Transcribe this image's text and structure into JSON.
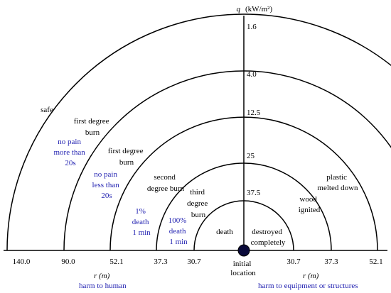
{
  "colors": {
    "line": "#000000",
    "text": "#000000",
    "accent": "#1f1fb0",
    "origin": "#0a0a3a"
  },
  "axis": {
    "q_label": "q",
    "q_unit": "(kW/m²)",
    "r_label_left": "r (m)",
    "r_label_right": "r (m)"
  },
  "q_values": [
    "1.6",
    "4.0",
    "12.5",
    "25",
    "37.5"
  ],
  "r_left": [
    "140.0",
    "90.0",
    "52.1",
    "37.3",
    "30.7"
  ],
  "r_right": [
    "30.7",
    "37.3",
    "52.1"
  ],
  "origin_label": [
    "initial",
    "location"
  ],
  "captions": {
    "human": "harm to human",
    "equipment": "harm to equipment or structures"
  },
  "human_zones": {
    "z1": [
      "safe"
    ],
    "z2": [
      "first degree",
      "burn"
    ],
    "z3": [
      "first degree",
      "burn"
    ],
    "z4": [
      "second",
      "degree burn"
    ],
    "z5": [
      "third",
      "degree",
      "burn"
    ],
    "z6": [
      "death"
    ]
  },
  "human_notes": {
    "n2": [
      "no pain",
      "more than",
      "20s"
    ],
    "n3": [
      "no pain",
      "less than",
      "20s"
    ],
    "n4": [
      "1%",
      "death",
      "1 min"
    ],
    "n5": [
      "100%",
      "death",
      "1 min"
    ]
  },
  "equipment_zones": {
    "e3": [
      "plastic",
      "melted down"
    ],
    "e4": [
      "wood",
      "ignited"
    ],
    "e5": [
      "destroyed",
      "completely"
    ]
  }
}
